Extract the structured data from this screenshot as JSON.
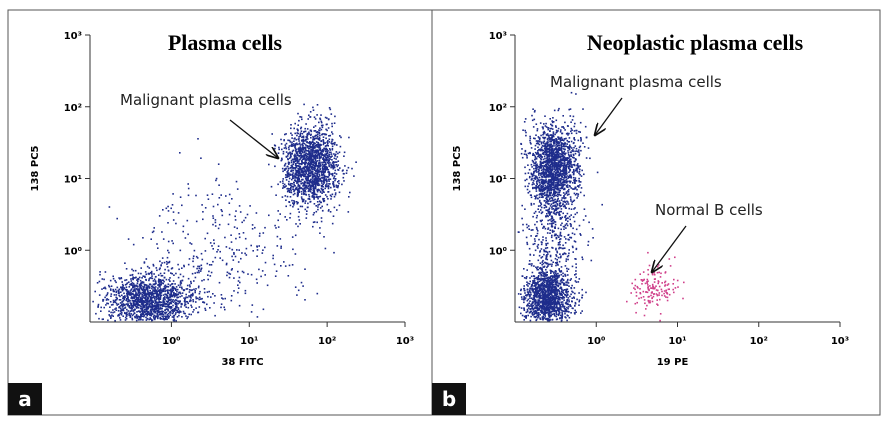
{
  "chart_data": [
    {
      "type": "density",
      "title": "Plasma cells",
      "x_label": "38 FITC",
      "y_label": "138 PC5",
      "xscale": "log",
      "yscale": "log",
      "xlim": [
        0.09,
        1000
      ],
      "ylim": [
        0.1,
        1000
      ],
      "xticks": [
        {
          "value": 1,
          "label": "10⁰"
        },
        {
          "value": 10,
          "label": "10¹"
        },
        {
          "value": 100,
          "label": "10²"
        },
        {
          "value": 1000,
          "label": "10³"
        }
      ],
      "yticks": [
        {
          "value": 1,
          "label": "10⁰"
        },
        {
          "value": 10,
          "label": "10¹"
        },
        {
          "value": 100,
          "label": "10²"
        },
        {
          "value": 1000,
          "label": "10³"
        }
      ],
      "clusters": [
        {
          "center_x": 0.5,
          "center_y": 0.2,
          "sd_x": 0.28,
          "sd_y": 0.2,
          "count": 1500,
          "color": "#1f2d8c"
        },
        {
          "center_x": 60,
          "center_y": 15,
          "sd_x": 0.18,
          "sd_y": 0.28,
          "count": 1600,
          "color": "#1f2d8c"
        },
        {
          "center_x": 4,
          "center_y": 1,
          "sd_x": 0.55,
          "sd_y": 0.5,
          "count": 350,
          "color": "#1f2d8c"
        }
      ],
      "annotations": [
        {
          "text": "Malignant plasma cells"
        }
      ],
      "panel_label": "a"
    },
    {
      "type": "density",
      "title": "Neoplastic plasma cells",
      "x_label": "19 PE",
      "y_label": "138 PC5",
      "xscale": "log",
      "yscale": "log",
      "xlim": [
        0.1,
        1000
      ],
      "ylim": [
        0.1,
        1000
      ],
      "xticks": [
        {
          "value": 1,
          "label": "10⁰"
        },
        {
          "value": 10,
          "label": "10¹"
        },
        {
          "value": 100,
          "label": "10²"
        },
        {
          "value": 1000,
          "label": "10³"
        }
      ],
      "yticks": [
        {
          "value": 1,
          "label": "10⁰"
        },
        {
          "value": 10,
          "label": "10¹"
        },
        {
          "value": 100,
          "label": "10²"
        },
        {
          "value": 1000,
          "label": "10³"
        }
      ],
      "clusters": [
        {
          "center_x": 0.25,
          "center_y": 0.22,
          "sd_x": 0.15,
          "sd_y": 0.2,
          "count": 1300,
          "color": "#1f2d8c"
        },
        {
          "center_x": 0.3,
          "center_y": 15,
          "sd_x": 0.15,
          "sd_y": 0.3,
          "count": 1600,
          "color": "#1f2d8c"
        },
        {
          "center_x": 0.3,
          "center_y": 2,
          "sd_x": 0.18,
          "sd_y": 0.4,
          "count": 400,
          "color": "#1f2d8c"
        },
        {
          "center_x": 5,
          "center_y": 0.3,
          "sd_x": 0.15,
          "sd_y": 0.15,
          "count": 150,
          "color": "#d0408a"
        }
      ],
      "annotations": [
        {
          "text": "Malignant plasma cells"
        },
        {
          "text": "Normal B cells"
        }
      ],
      "panel_label": "b"
    }
  ]
}
